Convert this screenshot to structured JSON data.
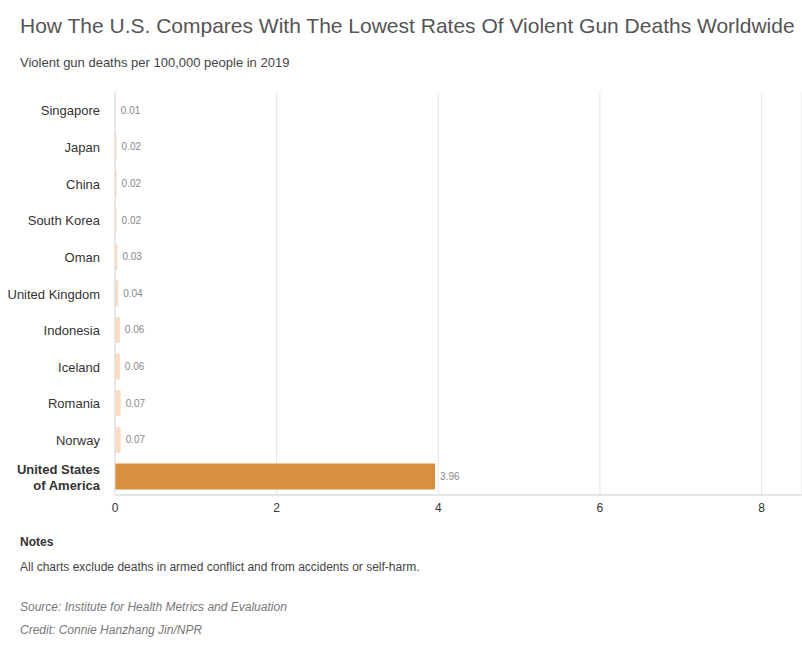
{
  "chart_data": {
    "type": "bar",
    "title": "How The U.S. Compares With The Lowest Rates Of Violent Gun Deaths Worldwide",
    "subtitle": "Violent gun deaths per 100,000 people in 2019",
    "categories": [
      "Singapore",
      "Japan",
      "China",
      "South Korea",
      "Oman",
      "United Kingdom",
      "Indonesia",
      "Iceland",
      "Romania",
      "Norway",
      "United States of America"
    ],
    "values": [
      0.01,
      0.02,
      0.02,
      0.02,
      0.03,
      0.04,
      0.06,
      0.06,
      0.07,
      0.07,
      3.96
    ],
    "colors": [
      "#f8dcc3",
      "#f8dcc3",
      "#f8dcc3",
      "#f8dcc3",
      "#f8dcc3",
      "#f8dcc3",
      "#f8dcc3",
      "#f8dcc3",
      "#f8dcc3",
      "#f8dcc3",
      "#d89040"
    ],
    "orientation": "horizontal",
    "xlim": [
      0,
      8.5
    ],
    "xticks": [
      0,
      2,
      4,
      6,
      8
    ],
    "grid": true,
    "data_labels": true,
    "notes_heading": "Notes",
    "notes": "All charts exclude deaths in armed conflict and from accidents or self-harm.",
    "source": "Source: Institute for Health Metrics and Evaluation",
    "credit": "Credit: Connie Hanzhang Jin/NPR"
  }
}
